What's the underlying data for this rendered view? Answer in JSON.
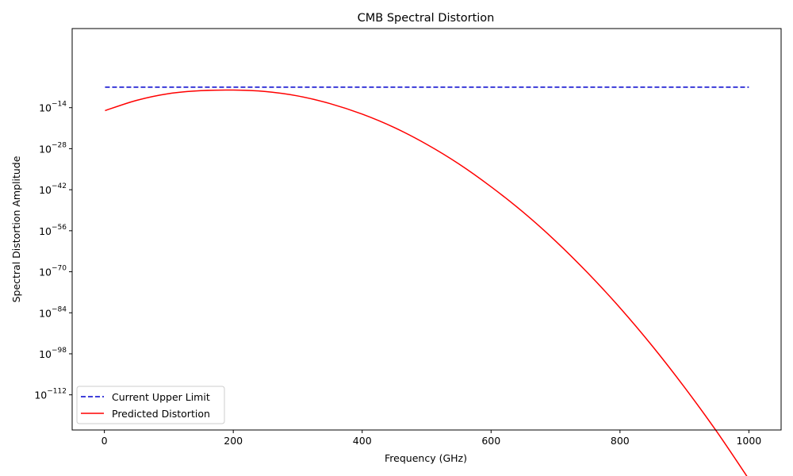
{
  "chart_data": {
    "type": "line",
    "title": "CMB Spectral Distortion",
    "xlabel": "Frequency (GHz)",
    "ylabel": "Spectral Distortion Amplitude",
    "yscale": "log",
    "xlim": [
      -50,
      1050
    ],
    "ylim_log10": [
      -124,
      13
    ],
    "x_ticks": [
      0,
      200,
      400,
      600,
      800,
      1000
    ],
    "x_tick_labels": [
      "0",
      "200",
      "400",
      "600",
      "800",
      "1000"
    ],
    "y_ticks_log10": [
      -112,
      -98,
      -84,
      -70,
      -56,
      -42,
      -28,
      -14
    ],
    "y_tick_base": "10",
    "y_tick_exponents": [
      "−112",
      "−98",
      "−84",
      "−70",
      "−56",
      "−42",
      "−28",
      "−14"
    ],
    "grid": false,
    "legend": {
      "placement": "lower-left",
      "entries": [
        "Current Upper Limit",
        "Predicted Distortion"
      ]
    },
    "series": [
      {
        "name": "Current Upper Limit",
        "color": "#0000cd",
        "style": "dashed",
        "x": [
          1,
          1000
        ],
        "log10_y": [
          -7,
          -7
        ]
      },
      {
        "name": "Predicted Distortion",
        "color": "#ff0000",
        "style": "solid",
        "x": [
          1,
          50,
          100,
          150,
          200,
          250,
          300,
          350,
          400,
          450,
          500,
          550,
          600,
          650,
          700,
          750,
          800,
          850,
          900,
          950,
          1000
        ],
        "log10_y": [
          -15,
          -11.5,
          -9.2,
          -8.2,
          -8,
          -8.5,
          -10,
          -12.6,
          -16.2,
          -20.8,
          -26.5,
          -33.2,
          -41,
          -49.7,
          -59.5,
          -70.4,
          -82.3,
          -95.3,
          -109.4,
          -124.5,
          -140.8
        ]
      }
    ]
  }
}
